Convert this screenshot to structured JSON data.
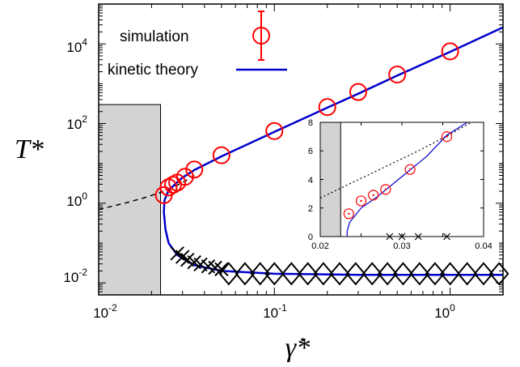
{
  "chart_data": {
    "type": "scatter",
    "scale": "log-log",
    "xlim": [
      0.01,
      2.0
    ],
    "ylim": [
      0.005,
      100000
    ],
    "x_ticks": [
      {
        "value": 0.01,
        "base": "10",
        "exp": "-2"
      },
      {
        "value": 0.1,
        "base": "10",
        "exp": "-1"
      },
      {
        "value": 1,
        "base": "10",
        "exp": "0"
      }
    ],
    "y_ticks": [
      {
        "value": 0.01,
        "base": "10",
        "exp": "-2"
      },
      {
        "value": 1,
        "base": "10",
        "exp": "0"
      },
      {
        "value": 100,
        "base": "10",
        "exp": "2"
      },
      {
        "value": 10000,
        "base": "10",
        "exp": "4"
      }
    ],
    "xlabel": "γ̇*",
    "ylabel": "T*",
    "legend": {
      "placement": "top-left",
      "entries": [
        {
          "label": "simulation",
          "marker": "circle-errorbar",
          "color": "#ff0000"
        },
        {
          "label": "kinetic theory",
          "marker": "line",
          "color": "#0000cc"
        }
      ]
    },
    "shaded_region": {
      "x": [
        0.01,
        0.0225
      ],
      "y": [
        0.005,
        300
      ],
      "color": "#d3d3d3"
    },
    "series": [
      {
        "label": "simulation",
        "color": "#ff0000",
        "marker": "circle",
        "points": [
          {
            "x": 0.0235,
            "y": 1.6
          },
          {
            "x": 0.025,
            "y": 2.5
          },
          {
            "x": 0.0265,
            "y": 2.9
          },
          {
            "x": 0.028,
            "y": 3.3
          },
          {
            "x": 0.031,
            "y": 4.6
          },
          {
            "x": 0.035,
            "y": 7.0
          },
          {
            "x": 0.05,
            "y": 16
          },
          {
            "x": 0.1,
            "y": 65
          },
          {
            "x": 0.2,
            "y": 260
          },
          {
            "x": 0.3,
            "y": 620
          },
          {
            "x": 0.5,
            "y": 1700
          },
          {
            "x": 1.0,
            "y": 6500
          }
        ]
      },
      {
        "label": "kinetic theory (upper branch)",
        "color": "#0000cc",
        "style": "solid",
        "points": [
          {
            "x": 0.0237,
            "y": 1.2
          },
          {
            "x": 0.025,
            "y": 2.1
          },
          {
            "x": 0.027,
            "y": 2.9
          },
          {
            "x": 0.03,
            "y": 4.4
          },
          {
            "x": 0.035,
            "y": 6.8
          },
          {
            "x": 0.05,
            "y": 15
          },
          {
            "x": 0.1,
            "y": 62
          },
          {
            "x": 0.2,
            "y": 250
          },
          {
            "x": 0.3,
            "y": 560
          },
          {
            "x": 0.5,
            "y": 1600
          },
          {
            "x": 1.0,
            "y": 6300
          },
          {
            "x": 2.0,
            "y": 26000
          }
        ]
      },
      {
        "label": "kinetic theory (lower branch)",
        "color": "#0000cc",
        "style": "solid",
        "points": [
          {
            "x": 0.0237,
            "y": 1.2
          },
          {
            "x": 0.0235,
            "y": 0.6
          },
          {
            "x": 0.024,
            "y": 0.22
          },
          {
            "x": 0.025,
            "y": 0.1
          },
          {
            "x": 0.028,
            "y": 0.05
          },
          {
            "x": 0.035,
            "y": 0.028
          },
          {
            "x": 0.05,
            "y": 0.02
          },
          {
            "x": 0.1,
            "y": 0.017
          },
          {
            "x": 0.3,
            "y": 0.016
          },
          {
            "x": 1.0,
            "y": 0.016
          },
          {
            "x": 2.0,
            "y": 0.016
          }
        ]
      },
      {
        "label": "extension (dashed)",
        "color": "#000000",
        "style": "dashed",
        "points": [
          {
            "x": 0.01,
            "y": 0.7
          },
          {
            "x": 0.014,
            "y": 1.0
          },
          {
            "x": 0.018,
            "y": 1.35
          },
          {
            "x": 0.022,
            "y": 1.8
          },
          {
            "x": 0.025,
            "y": 2.2
          },
          {
            "x": 0.03,
            "y": 3.3
          },
          {
            "x": 0.035,
            "y": 5.0
          }
        ]
      },
      {
        "label": "lower-branch markers",
        "color": "#000000",
        "marker": "x",
        "points": [
          {
            "x": 0.028,
            "y": 0.055
          },
          {
            "x": 0.03,
            "y": 0.045
          },
          {
            "x": 0.032,
            "y": 0.038
          },
          {
            "x": 0.035,
            "y": 0.033
          },
          {
            "x": 0.038,
            "y": 0.029
          },
          {
            "x": 0.042,
            "y": 0.026
          },
          {
            "x": 0.046,
            "y": 0.024
          },
          {
            "x": 0.05,
            "y": 0.022
          }
        ]
      },
      {
        "label": "lower-branch diamonds",
        "color": "#000000",
        "marker": "diamond",
        "points": [
          {
            "x": 0.055,
            "y": 0.017
          },
          {
            "x": 0.068,
            "y": 0.017
          },
          {
            "x": 0.083,
            "y": 0.017
          },
          {
            "x": 0.1,
            "y": 0.017
          },
          {
            "x": 0.125,
            "y": 0.017
          },
          {
            "x": 0.155,
            "y": 0.017
          },
          {
            "x": 0.19,
            "y": 0.017
          },
          {
            "x": 0.235,
            "y": 0.017
          },
          {
            "x": 0.29,
            "y": 0.017
          },
          {
            "x": 0.36,
            "y": 0.017
          },
          {
            "x": 0.44,
            "y": 0.017
          },
          {
            "x": 0.54,
            "y": 0.017
          },
          {
            "x": 0.67,
            "y": 0.017
          },
          {
            "x": 0.82,
            "y": 0.017
          },
          {
            "x": 1.0,
            "y": 0.017
          },
          {
            "x": 1.25,
            "y": 0.017
          },
          {
            "x": 1.55,
            "y": 0.017
          },
          {
            "x": 1.9,
            "y": 0.017
          }
        ]
      }
    ],
    "inset": {
      "type": "scatter",
      "scale": "linear",
      "xlim": [
        0.02,
        0.04
      ],
      "ylim": [
        0,
        8
      ],
      "x_ticks": [
        "0.02",
        "0.03",
        "0.04"
      ],
      "y_ticks": [
        "0",
        "2",
        "4",
        "6",
        "8"
      ],
      "shaded_region": {
        "x": [
          0.02,
          0.0225
        ],
        "y": [
          0,
          8
        ]
      },
      "series": [
        {
          "label": "simulation",
          "color": "#ff0000",
          "marker": "circle-dot",
          "points": [
            {
              "x": 0.0235,
              "y": 1.6
            },
            {
              "x": 0.025,
              "y": 2.5
            },
            {
              "x": 0.0265,
              "y": 2.9
            },
            {
              "x": 0.028,
              "y": 3.3
            },
            {
              "x": 0.031,
              "y": 4.7
            },
            {
              "x": 0.0355,
              "y": 7.0
            }
          ]
        },
        {
          "label": "kinetic theory",
          "color": "#0000cc",
          "style": "solid",
          "points": [
            {
              "x": 0.0233,
              "y": 0.0
            },
            {
              "x": 0.0233,
              "y": 0.4
            },
            {
              "x": 0.0236,
              "y": 1.0
            },
            {
              "x": 0.025,
              "y": 2.0
            },
            {
              "x": 0.027,
              "y": 2.8
            },
            {
              "x": 0.03,
              "y": 4.2
            },
            {
              "x": 0.033,
              "y": 5.6
            },
            {
              "x": 0.0355,
              "y": 7.1
            },
            {
              "x": 0.038,
              "y": 8.0
            }
          ]
        },
        {
          "label": "dotted",
          "color": "#000000",
          "style": "dotted",
          "points": [
            {
              "x": 0.02,
              "y": 2.7
            },
            {
              "x": 0.024,
              "y": 3.8
            },
            {
              "x": 0.028,
              "y": 4.9
            },
            {
              "x": 0.032,
              "y": 6.0
            },
            {
              "x": 0.036,
              "y": 7.2
            },
            {
              "x": 0.0385,
              "y": 8.0
            }
          ]
        },
        {
          "label": "x markers",
          "color": "#000000",
          "marker": "x",
          "points": [
            {
              "x": 0.0285,
              "y": 0
            },
            {
              "x": 0.03,
              "y": 0
            },
            {
              "x": 0.032,
              "y": 0
            },
            {
              "x": 0.0355,
              "y": 0
            }
          ]
        }
      ]
    }
  }
}
